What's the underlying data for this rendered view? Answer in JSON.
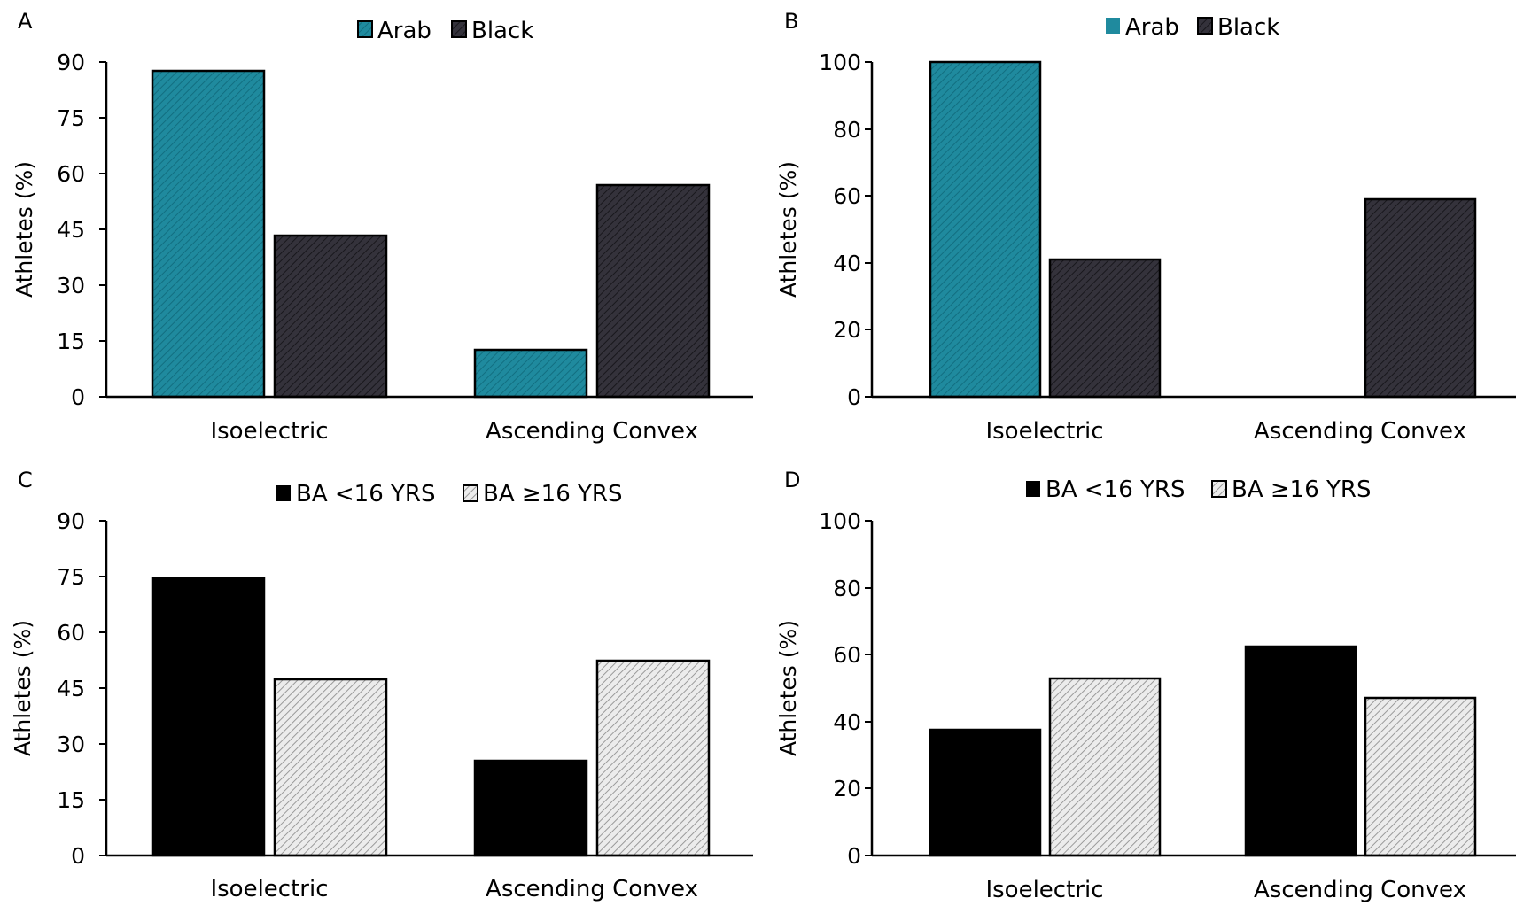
{
  "chart_data": [
    {
      "panel": "A",
      "type": "bar",
      "categories": [
        "Isoelectric",
        "Ascending Convex"
      ],
      "series": [
        {
          "name": "Arab",
          "values": [
            87.5,
            12.5
          ],
          "style": "teal"
        },
        {
          "name": "Black",
          "values": [
            43,
            57
          ],
          "style": "dark"
        }
      ],
      "ylabel": "Athletes (%)",
      "ylim": [
        0,
        90
      ],
      "yticks": [
        "0",
        "15",
        "30",
        "45",
        "60",
        "75",
        "90"
      ],
      "legend": "top-center",
      "grid": false
    },
    {
      "panel": "B",
      "type": "bar",
      "categories": [
        "Isoelectric",
        "Ascending Convex"
      ],
      "series": [
        {
          "name": "Arab",
          "values": [
            100,
            0
          ],
          "style": "teal"
        },
        {
          "name": "Black",
          "values": [
            41,
            59
          ],
          "style": "dark"
        }
      ],
      "ylabel": "Athletes (%)",
      "ylim": [
        0,
        100
      ],
      "yticks": [
        "0",
        "20",
        "40",
        "60",
        "80",
        "100"
      ],
      "legend": "top-center",
      "grid": false
    },
    {
      "panel": "C",
      "type": "bar",
      "categories": [
        "Isoelectric",
        "Ascending Convex"
      ],
      "series": [
        {
          "name": "BA <16 YRS",
          "values": [
            74.5,
            25.5
          ],
          "style": "black"
        },
        {
          "name": "BA ≥16 YRS",
          "values": [
            47.5,
            52.5
          ],
          "style": "light"
        }
      ],
      "ylabel": "Athletes (%)",
      "ylim": [
        0,
        90
      ],
      "yticks": [
        "0",
        "15",
        "30",
        "45",
        "60",
        "75",
        "90"
      ],
      "legend": "top-center",
      "grid": false
    },
    {
      "panel": "D",
      "type": "bar",
      "categories": [
        "Isoelectric",
        "Ascending Convex"
      ],
      "series": [
        {
          "name": "BA <16 YRS",
          "values": [
            37.5,
            62.5
          ],
          "style": "black"
        },
        {
          "name": "BA ≥16 YRS",
          "values": [
            53,
            47
          ],
          "style": "light"
        }
      ],
      "ylabel": "Athletes (%)",
      "ylim": [
        0,
        100
      ],
      "yticks": [
        "0",
        "20",
        "40",
        "60",
        "80",
        "100"
      ],
      "legend": "top-center",
      "grid": false
    }
  ],
  "colors": {
    "teal": "#1f8a9e",
    "dark": "#2c2a33",
    "black": "#000000",
    "light": "#e4e4e4",
    "axis": "#000000"
  }
}
